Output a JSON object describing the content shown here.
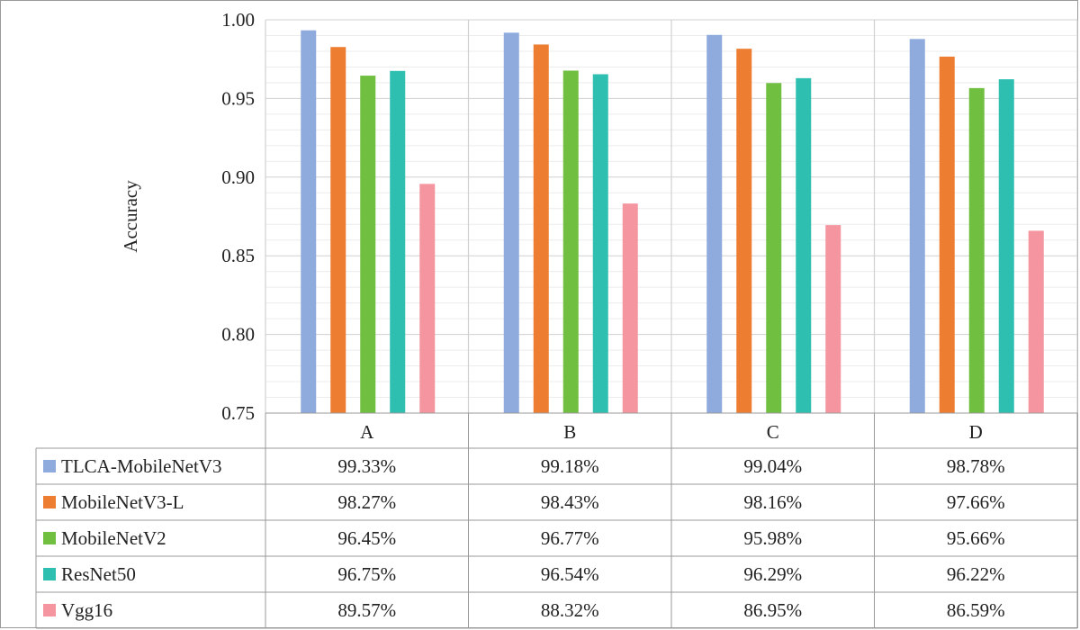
{
  "chart_data": {
    "type": "bar",
    "ylabel": "Accuracy",
    "ylim": [
      0.75,
      1.0
    ],
    "yticks": [
      "0.75",
      "0.80",
      "0.85",
      "0.90",
      "0.95",
      "1.00"
    ],
    "categories": [
      "A",
      "B",
      "C",
      "D"
    ],
    "series": [
      {
        "name": "TLCA-MobileNetV3",
        "color": "#8faadc",
        "values": [
          0.9933,
          0.9918,
          0.9904,
          0.9878
        ],
        "labels": [
          "99.33%",
          "99.18%",
          "99.04%",
          "98.78%"
        ]
      },
      {
        "name": "MobileNetV3-L",
        "color": "#ed7d31",
        "values": [
          0.9827,
          0.9843,
          0.9816,
          0.9766
        ],
        "labels": [
          "98.27%",
          "98.43%",
          "98.16%",
          "97.66%"
        ]
      },
      {
        "name": "MobileNetV2",
        "color": "#70bf41",
        "values": [
          0.9645,
          0.9677,
          0.9598,
          0.9566
        ],
        "labels": [
          "96.45%",
          "96.77%",
          "95.98%",
          "95.66%"
        ]
      },
      {
        "name": "ResNet50",
        "color": "#2ebfb0",
        "values": [
          0.9675,
          0.9654,
          0.9629,
          0.9622
        ],
        "labels": [
          "96.75%",
          "96.54%",
          "96.29%",
          "96.22%"
        ]
      },
      {
        "name": "Vgg16",
        "color": "#f4959f",
        "values": [
          0.8957,
          0.8832,
          0.8695,
          0.8659
        ],
        "labels": [
          "89.57%",
          "88.32%",
          "86.95%",
          "86.59%"
        ]
      }
    ],
    "grid": true,
    "legend": "data table below chart"
  }
}
